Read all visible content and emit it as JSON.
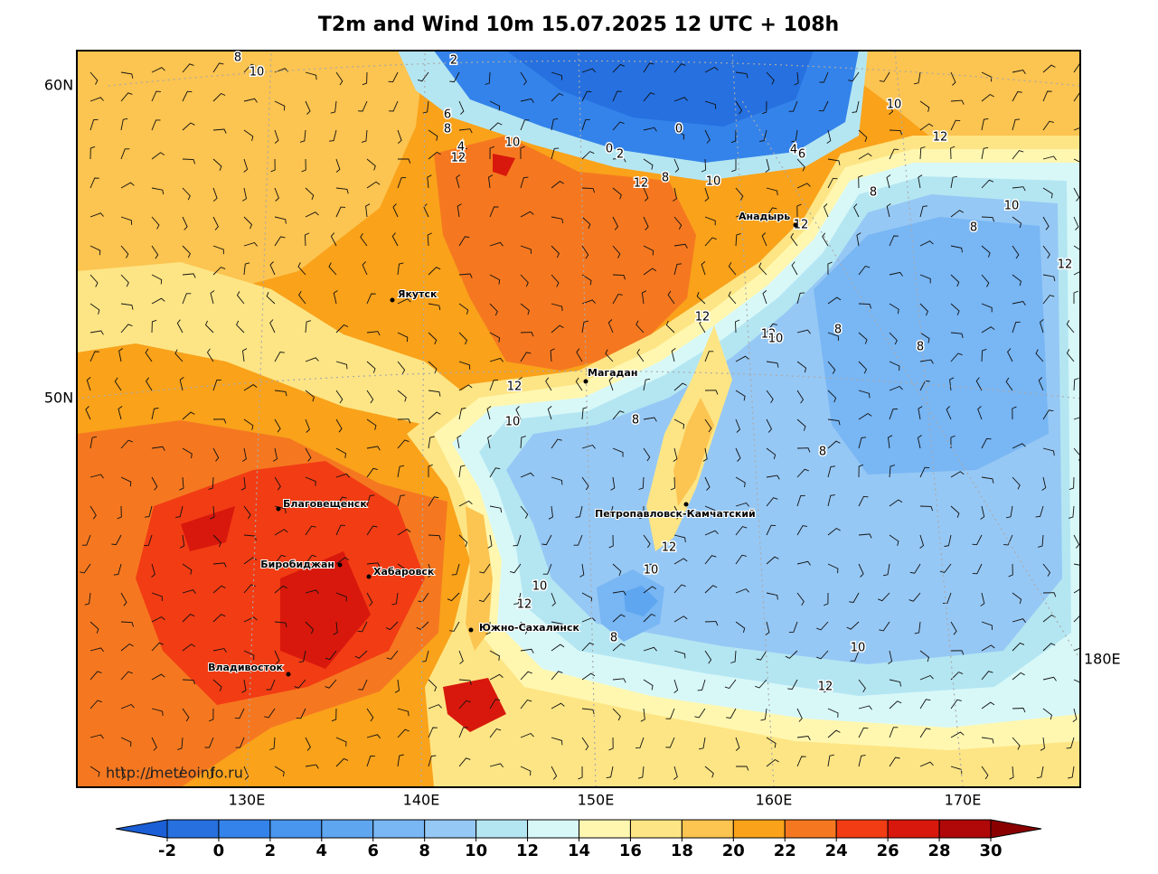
{
  "title": "T2m and Wind 10m 15.07.2025 12 UTC + 108h",
  "url": "http://meteoinfo.ru",
  "lat_labels": [
    "60N",
    "50N"
  ],
  "lon_labels": [
    "130E",
    "140E",
    "150E",
    "160E",
    "170E",
    "180E"
  ],
  "cities": [
    "Якутск",
    "Магадан",
    "Анадырь",
    "Благовещенск",
    "Биробиджан",
    "Хабаровск",
    "Петропавловск-Камчатский",
    "Южно-Сахалинск",
    "Владивосток"
  ],
  "contour_labels": [
    2,
    8,
    10,
    6,
    8,
    4,
    12,
    10,
    0,
    0,
    2,
    4,
    6,
    10,
    12,
    12,
    8,
    10,
    8,
    10,
    8,
    12,
    12,
    12,
    12,
    10,
    8,
    8,
    12,
    10,
    8,
    8,
    12,
    10,
    10,
    12,
    8,
    10,
    12
  ],
  "colorbar": {
    "ticks": [
      -2,
      0,
      2,
      4,
      6,
      8,
      10,
      12,
      14,
      16,
      18,
      20,
      22,
      24,
      26,
      28,
      30
    ],
    "colors": [
      "#1a5fd6",
      "#2670e0",
      "#3483ea",
      "#4896ee",
      "#5ea6f0",
      "#78b6f4",
      "#96c8f5",
      "#b4e6f2",
      "#d8f8f8",
      "#fff7b0",
      "#fde585",
      "#fcc450",
      "#f9a21a",
      "#f57820",
      "#f23c14",
      "#d8180c",
      "#b00808",
      "#8a0000"
    ]
  }
}
